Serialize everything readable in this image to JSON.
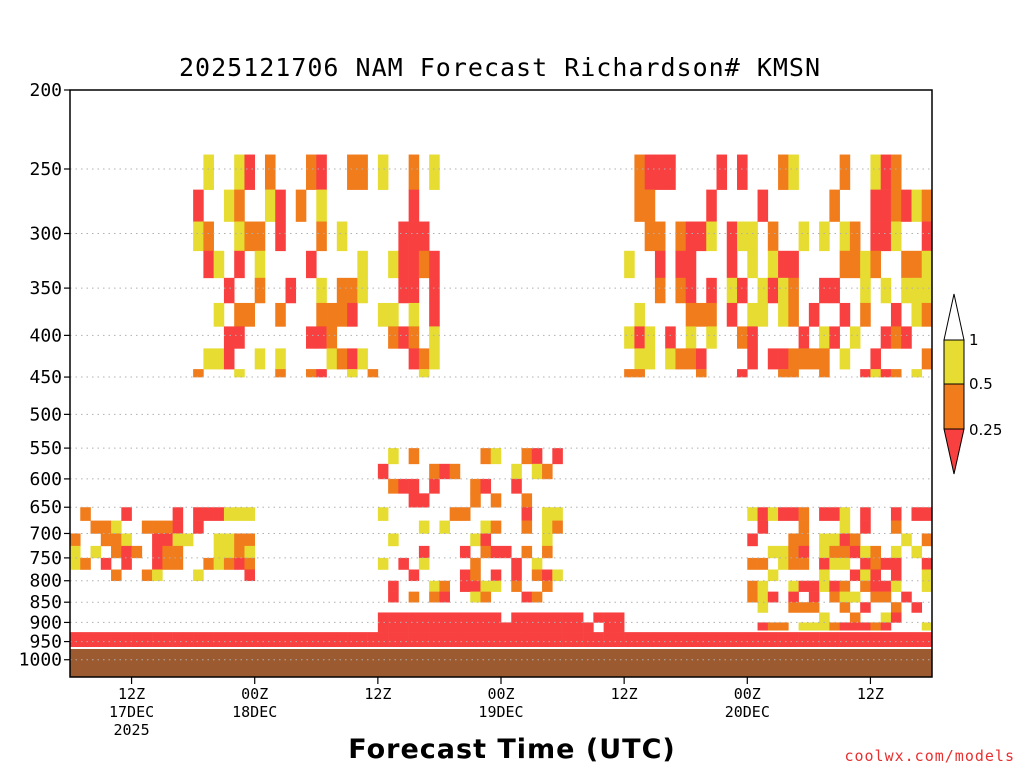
{
  "chart_data": {
    "type": "heatmap",
    "title": "2025121706 NAM Forecast Richardson# KMSN",
    "xlabel": "Forecast Time (UTC)",
    "ylabel": "",
    "credit": "coolwx.com/models",
    "y_scale": "log-pressure",
    "y_reversed": true,
    "ylim": [
      200,
      1050
    ],
    "y_ticks": [
      {
        "value": 200,
        "label": "200"
      },
      {
        "value": 250,
        "label": "250"
      },
      {
        "value": 300,
        "label": "300"
      },
      {
        "value": 350,
        "label": "350"
      },
      {
        "value": 400,
        "label": "400"
      },
      {
        "value": 450,
        "label": "450"
      },
      {
        "value": 500,
        "label": "500"
      },
      {
        "value": 550,
        "label": "550"
      },
      {
        "value": 600,
        "label": "600"
      },
      {
        "value": 650,
        "label": "650"
      },
      {
        "value": 700,
        "label": "700"
      },
      {
        "value": 750,
        "label": "750"
      },
      {
        "value": 800,
        "label": "800"
      },
      {
        "value": 850,
        "label": "850"
      },
      {
        "value": 900,
        "label": "900"
      },
      {
        "value": 950,
        "label": "950"
      },
      {
        "value": 1000,
        "label": "1000"
      }
    ],
    "gridlines": "dotted at y ticks",
    "xlim": [
      "2025-12-17T06:00Z",
      "2025-12-20T18:00Z"
    ],
    "x_ticks": [
      {
        "time": "2025-12-17T12:00Z",
        "lines": [
          "12Z",
          "17DEC",
          "2025"
        ]
      },
      {
        "time": "2025-12-18T00:00Z",
        "lines": [
          "00Z",
          "18DEC"
        ]
      },
      {
        "time": "2025-12-18T12:00Z",
        "lines": [
          "12Z"
        ]
      },
      {
        "time": "2025-12-19T00:00Z",
        "lines": [
          "00Z",
          "19DEC"
        ]
      },
      {
        "time": "2025-12-19T12:00Z",
        "lines": [
          "12Z"
        ]
      },
      {
        "time": "2025-12-20T00:00Z",
        "lines": [
          "00Z",
          "20DEC"
        ]
      },
      {
        "time": "2025-12-20T12:00Z",
        "lines": [
          "12Z"
        ]
      }
    ],
    "colorbar": {
      "labels": [
        "1",
        "0.5",
        "0.25"
      ],
      "bins": [
        {
          "range": "> 1",
          "color": "#ffffff"
        },
        {
          "range": "0.5 – 1",
          "color": "#e6dc32"
        },
        {
          "range": "0.25 – 0.5",
          "color": "#f07c1c"
        },
        {
          "range": "< 0.25",
          "color": "#f84040"
        }
      ]
    },
    "colors": {
      "lt_025": "#f84040",
      "025_05": "#f07c1c",
      "05_1": "#e6dc32",
      "surface": "#9b5a2f",
      "grid": "#b0b0b0"
    },
    "surface_pressure_hpa": 970,
    "grid_resolution": {
      "time_step_hours": 1,
      "pressure_step_hpa": 25
    },
    "region_patterns": [
      {
        "time_start": "2025-12-17T06:00Z",
        "time_end": "2025-12-20T18:00Z",
        "p_top": 925,
        "p_bottom": 965,
        "ri_class": "lt_025",
        "coverage": 1.0
      },
      {
        "time_start": "2025-12-18T12:00Z",
        "time_end": "2025-12-19T12:00Z",
        "p_top": 875,
        "p_bottom": 925,
        "ri_class": "lt_025",
        "coverage": 0.9
      },
      {
        "time_start": "2025-12-17T06:00Z",
        "time_end": "2025-12-18T00:00Z",
        "p_top": 650,
        "p_bottom": 800,
        "ri_class": "mixed",
        "coverage": 0.5
      },
      {
        "time_start": "2025-12-17T18:00Z",
        "time_end": "2025-12-18T18:00Z",
        "p_top": 240,
        "p_bottom": 450,
        "ri_class": "mixed",
        "coverage": 0.45
      },
      {
        "time_start": "2025-12-18T12:00Z",
        "time_end": "2025-12-19T06:00Z",
        "p_top": 550,
        "p_bottom": 850,
        "ri_class": "mixed",
        "coverage": 0.35
      },
      {
        "time_start": "2025-12-19T12:00Z",
        "time_end": "2025-12-20T18:00Z",
        "p_top": 240,
        "p_bottom": 450,
        "ri_class": "mixed",
        "coverage": 0.45
      },
      {
        "time_start": "2025-12-20T00:00Z",
        "time_end": "2025-12-20T18:00Z",
        "p_top": 650,
        "p_bottom": 920,
        "ri_class": "mixed",
        "coverage": 0.5
      },
      {
        "time_start": "2025-12-18T18:00Z",
        "time_end": "2025-12-19T12:00Z",
        "p_top": 300,
        "p_bottom": 600,
        "ri_class": "none",
        "coverage": 0.02
      }
    ]
  }
}
